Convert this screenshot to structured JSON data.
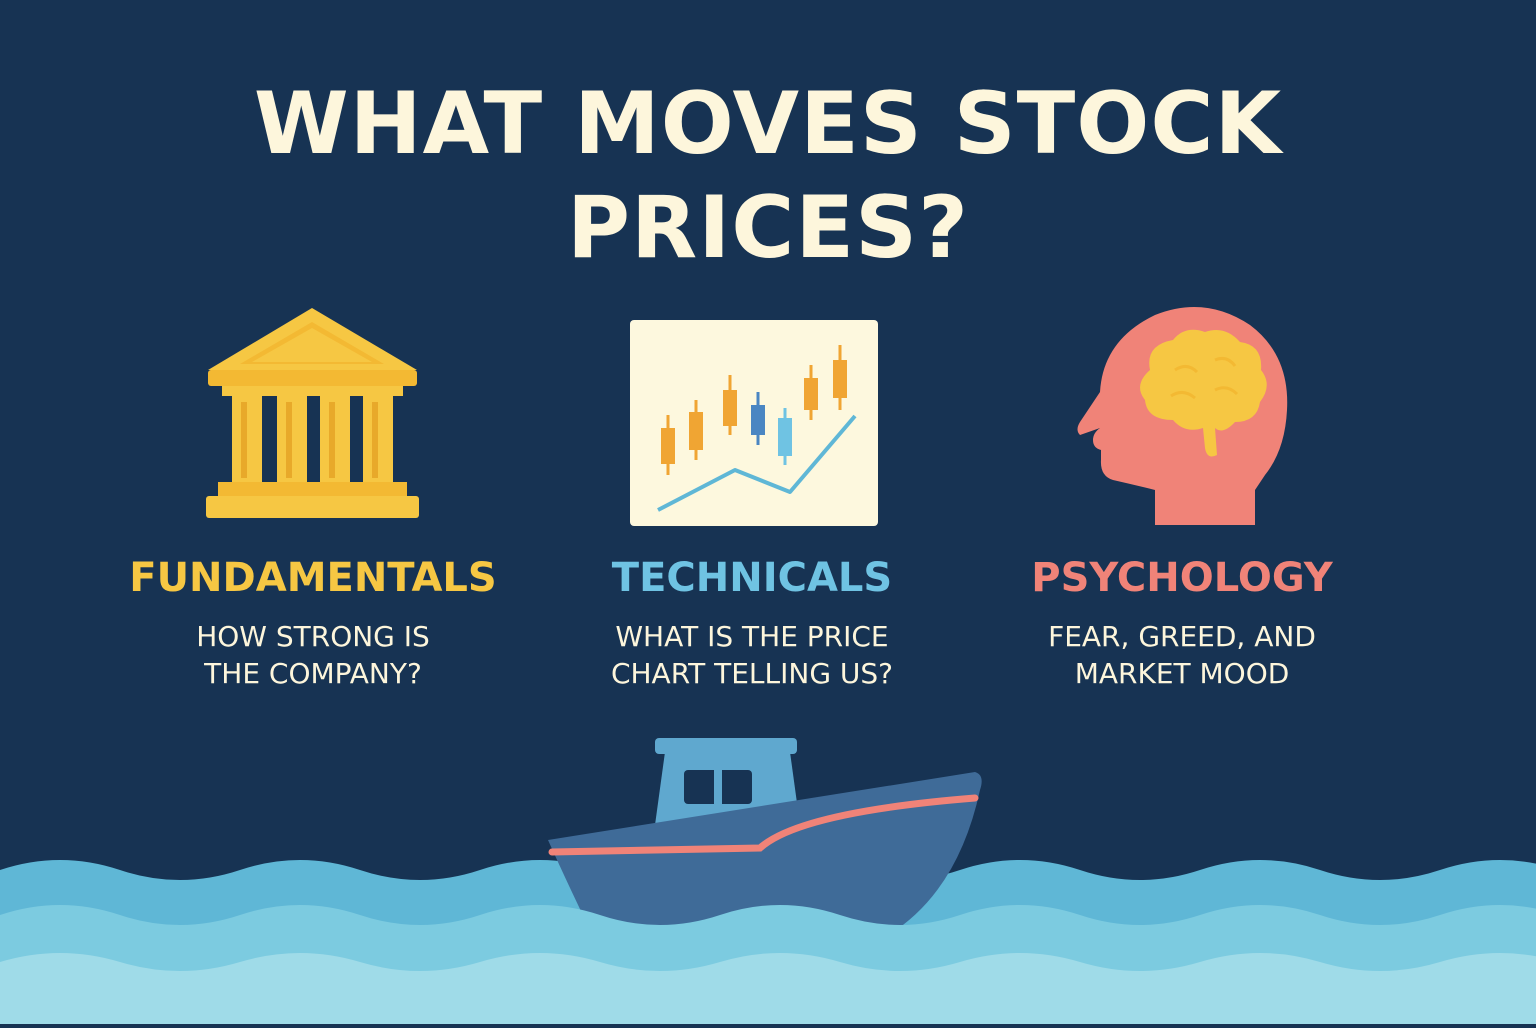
{
  "title": {
    "line1": "WHAT MOVES STOCK",
    "line2": "PRICES?"
  },
  "columns": [
    {
      "heading": "FUNDAMENTALS",
      "desc_line1": "HOW STRONG IS",
      "desc_line2": "THE COMPANY?",
      "color": "#f6c743",
      "icon": "bank-building-icon"
    },
    {
      "heading": "TECHNICALS",
      "desc_line1": "WHAT IS THE PRICE",
      "desc_line2": "CHART TELLING US?",
      "color": "#6fc3e3",
      "icon": "candlestick-chart-icon"
    },
    {
      "heading": "PSYCHOLOGY",
      "desc_line1": "FEAR, GREED, AND",
      "desc_line2": "MARKET MOOD",
      "color": "#f08378",
      "icon": "head-brain-icon"
    }
  ],
  "colors": {
    "background": "#173353",
    "text": "#fdf6dc",
    "gold": "#f6c743",
    "blue": "#6fc3e3",
    "coral": "#f08378",
    "water": "#5fb7d6",
    "boat": "#3f6b98"
  }
}
